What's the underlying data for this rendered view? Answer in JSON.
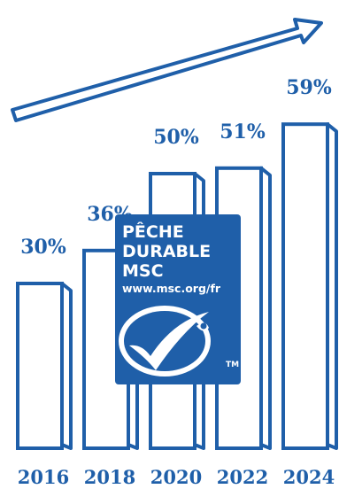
{
  "chart_data": {
    "type": "bar",
    "categories": [
      "2016",
      "2018",
      "2020",
      "2022",
      "2024"
    ],
    "values": [
      30,
      36,
      50,
      51,
      59
    ],
    "value_labels": [
      "30%",
      "36%",
      "50%",
      "51%",
      "59%"
    ],
    "ylim": [
      0,
      70
    ],
    "grid": false,
    "legend": "none",
    "colors": {
      "outline": "#1f5fa9",
      "bar_fill": "#ffffff",
      "text": "#1f5fa9"
    }
  },
  "logo": {
    "line1": "PÊCHE",
    "line2": "DURABLE",
    "line3": "MSC",
    "url": "www.msc.org/fr",
    "trademark": "TM",
    "color": "#1f5fa9"
  },
  "decor": {
    "trend_arrow": "upward-trend-arrow-icon"
  }
}
